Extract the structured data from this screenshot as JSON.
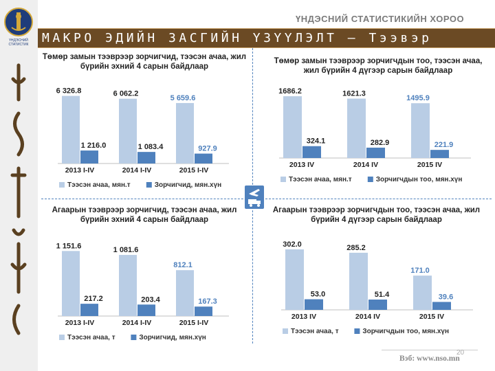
{
  "header": {
    "org_name": "ҮНДЭСНИЙ СТАТИСТИКИЙН ХОРОО",
    "title": "МАКРО ЭДИЙН ЗАСГИЙН ҮЗҮҮЛЭЛТ – Тээвэр",
    "logo_text_1": "ҮНДЭСНИЙ",
    "logo_text_2": "СТАТИСТИК"
  },
  "footer": {
    "page_number": "20",
    "website": "Вэб: www.nso.mn"
  },
  "colors": {
    "series_light": "#b9cde5",
    "series_dark": "#4f81bd",
    "title_bar": "#6b4a24",
    "highlight_label": "#4f81bd"
  },
  "icons": {
    "logo": "soyombo-emblem-icon",
    "center": "plane-truck-icon"
  },
  "chart_data": [
    {
      "type": "bar",
      "title": "Төмөр замын тээврээр зорчигчид, тээсэн ачаа, жил бүрийн эхний 4 сарын байдлаар",
      "categories": [
        "2013 I-IV",
        "2014 I-IV",
        "2015 I-IV"
      ],
      "series": [
        {
          "name": "Тээсэн ачаа, мян.т",
          "values": [
            6326.8,
            6062.2,
            5659.6
          ],
          "labels": [
            "6 326.8",
            "6 062.2",
            "5 659.6"
          ]
        },
        {
          "name": "Зорчигчид, мян.хүн",
          "values": [
            1216.0,
            1083.4,
            927.9
          ],
          "labels": [
            "1 216.0",
            "1 083.4",
            "927.9"
          ]
        }
      ],
      "ymax": 7200,
      "legend": "bottom"
    },
    {
      "type": "bar",
      "title": "Төмөр замын тээврээр зорчигчдын тоо, тээсэн ачаа, жил бүрийн 4 дүгээр сарын байдлаар",
      "categories": [
        "2013 IV",
        "2014 IV",
        "2015 IV"
      ],
      "series": [
        {
          "name": "Тээсэн ачаа, мян.т",
          "values": [
            1686.2,
            1621.3,
            1495.9
          ],
          "labels": [
            "1686.2",
            "1621.3",
            "1495.9"
          ]
        },
        {
          "name": "Зорчигчдын тоо, мян.хүн",
          "values": [
            324.1,
            282.9,
            221.9
          ],
          "labels": [
            "324.1",
            "282.9",
            "221.9"
          ]
        }
      ],
      "ymax": 1950,
      "legend": "bottom"
    },
    {
      "type": "bar",
      "title": "Агаарын тээврээр зорчигчид, тээсэн ачаа, жил бүрийн эхний 4 сарын байдлаар",
      "categories": [
        "2013 I-IV",
        "2014 I-IV",
        "2015 I-IV"
      ],
      "series": [
        {
          "name": "Тээсэн ачаа, т",
          "values": [
            1151.6,
            1081.6,
            812.1
          ],
          "labels": [
            "1 151.6",
            "1 081.6",
            "812.1"
          ]
        },
        {
          "name": "Зорчигчид, мян.хүн",
          "values": [
            217.2,
            203.4,
            167.3
          ],
          "labels": [
            "217.2",
            "203.4",
            "167.3"
          ]
        }
      ],
      "ymax": 1350,
      "legend": "bottom"
    },
    {
      "type": "bar",
      "title": "Агаарын тээврээр зорчигчдын тоо, тээсэн ачаа, жил бүрийн 4 дүгээр сарын байдлаар",
      "categories": [
        "2013 IV",
        "2014 IV",
        "2015 IV"
      ],
      "series": [
        {
          "name": "Тээсэн ачаа, т",
          "values": [
            302.0,
            285.2,
            171.0
          ],
          "labels": [
            "302.0",
            "285.2",
            "171.0"
          ]
        },
        {
          "name": "Зорчигчдын тоо, мян.хүн",
          "values": [
            53.0,
            51.4,
            39.6
          ],
          "labels": [
            "53.0",
            "51.4",
            "39.6"
          ]
        }
      ],
      "ymax": 350,
      "legend": "bottom"
    }
  ]
}
